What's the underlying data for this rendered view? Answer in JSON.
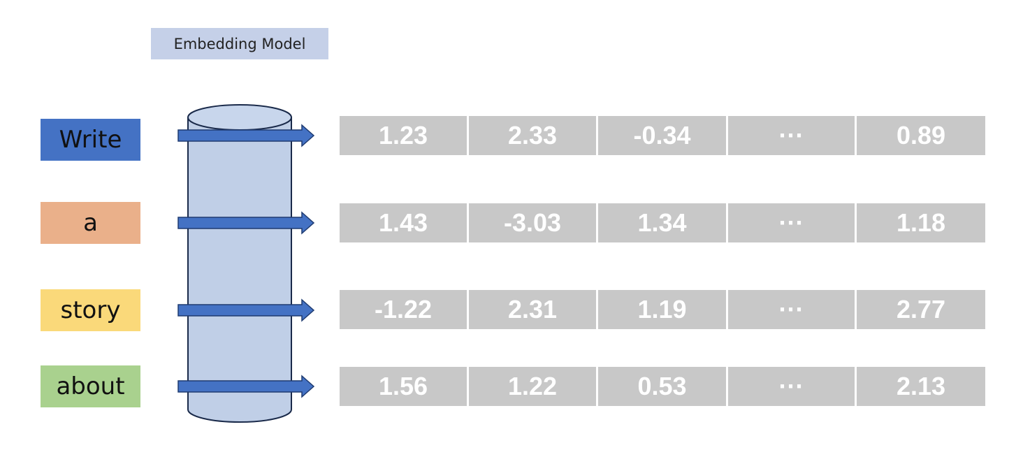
{
  "model_label": "Embedding Model",
  "colors": {
    "model_label_bg": "#c5d0e8",
    "cylinder_fill": "#c0cfe7",
    "arrow_fill": "#4472c4",
    "cell_bg": "#c8c8c8"
  },
  "tokens": [
    {
      "text": "Write",
      "color": "#4472c4",
      "text_color": "#111111"
    },
    {
      "text": "a",
      "color": "#eab08a",
      "text_color": "#111111"
    },
    {
      "text": "story",
      "color": "#fad97a",
      "text_color": "#111111"
    },
    {
      "text": "about",
      "color": "#a9d18e",
      "text_color": "#111111"
    }
  ],
  "vectors": [
    [
      "1.23",
      "2.33",
      "-0.34",
      "···",
      "0.89"
    ],
    [
      "1.43",
      "-3.03",
      "1.34",
      "···",
      "1.18"
    ],
    [
      "-1.22",
      "2.31",
      "1.19",
      "···",
      "2.77"
    ],
    [
      "1.56",
      "1.22",
      "0.53",
      "···",
      "2.13"
    ]
  ]
}
